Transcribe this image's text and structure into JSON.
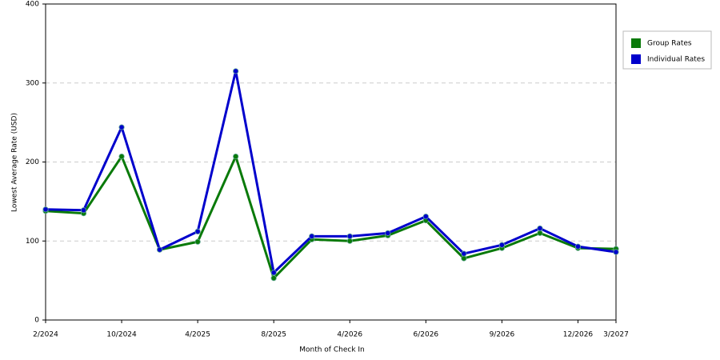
{
  "chart_data": {
    "type": "line",
    "x_label": "Month of Check In",
    "y_label": "Lowest Average Rate (USD)",
    "categories": [
      "2/2024",
      null,
      "10/2024",
      null,
      "4/2025",
      null,
      "8/2025",
      null,
      "4/2026",
      null,
      "6/2026",
      null,
      "9/2026",
      null,
      "12/2026",
      "3/2027"
    ],
    "series": [
      {
        "name": "Group Rates",
        "color": "#0a7a0a",
        "values": [
          138,
          135,
          207,
          89,
          99,
          207,
          53,
          102,
          100,
          107,
          126,
          78,
          91,
          110,
          91,
          90
        ]
      },
      {
        "name": "Individual Rates",
        "color": "#0000cc",
        "values": [
          140,
          139,
          244,
          89,
          112,
          315,
          60,
          106,
          106,
          110,
          131,
          84,
          95,
          116,
          93,
          86
        ]
      }
    ],
    "ylim": [
      0,
      400
    ],
    "yticks": [
      0,
      100,
      200,
      300,
      400
    ],
    "grid": true,
    "legend": "right"
  }
}
